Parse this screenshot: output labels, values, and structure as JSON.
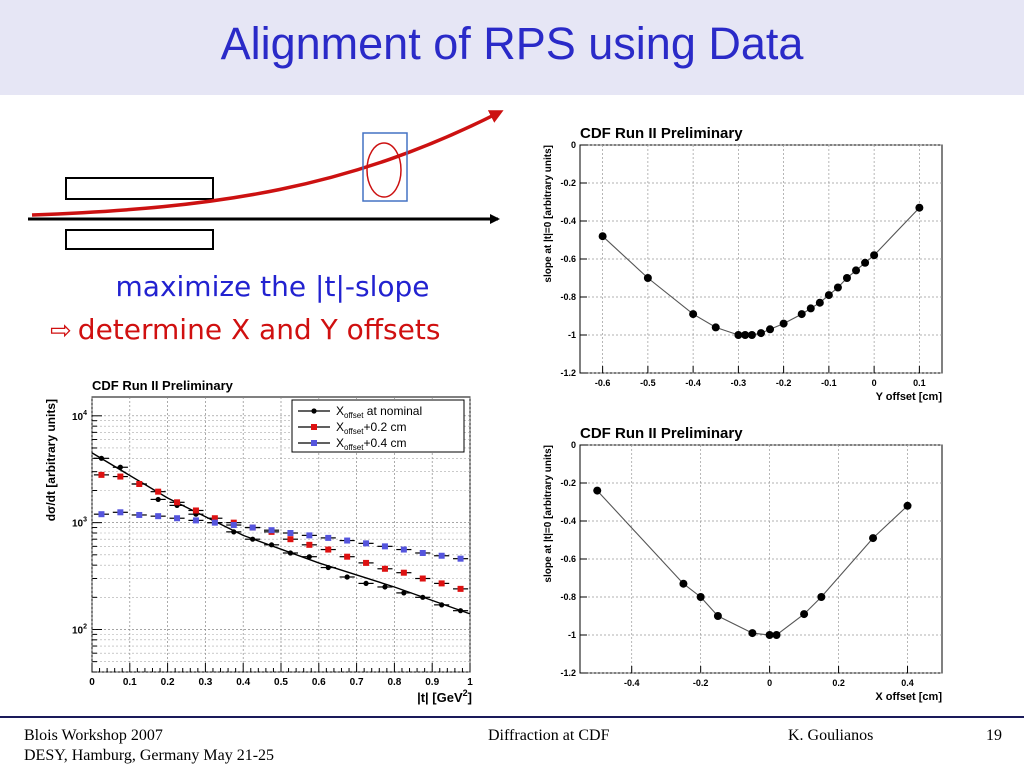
{
  "slide": {
    "title": "Alignment of RPS using Data",
    "caption_line1": "maximize the |t|-slope",
    "caption_line2": "determine X and Y offsets",
    "caption_arrow_icon": "hollow-right-arrow"
  },
  "footer": {
    "left_line1": "Blois Workshop 2007",
    "left_line2": "DESY, Hamburg, Germany May 21-25",
    "center": "Diffraction at CDF",
    "author": "K. Goulianos",
    "page": "19"
  },
  "colors": {
    "title": "#2a2ac8",
    "title_band": "#e6e6f5",
    "caption_blue": "#2222d0",
    "caption_red": "#d01010",
    "beam_arrow": "#cc1111",
    "detector_box": "#4472c4"
  },
  "chart_data": [
    {
      "type": "line",
      "title": "CDF Run II Preliminary",
      "xlabel": "Y offset [cm]",
      "ylabel": "slope at |t|=0 [arbitrary units]",
      "xlim": [
        -0.65,
        0.15
      ],
      "ylim": [
        -1.2,
        0
      ],
      "xticks": [
        -0.6,
        -0.5,
        -0.4,
        -0.3,
        -0.2,
        -0.1,
        0,
        0.1
      ],
      "xticklabels": [
        "-0.6",
        "-0.5",
        "-0.4",
        "-0.3",
        "-0.2",
        "-0.1",
        "0",
        "0.1"
      ],
      "yticks": [
        0,
        -0.2,
        -0.4,
        -0.6,
        -0.8,
        -1,
        -1.2
      ],
      "yticklabels": [
        "0",
        "-0.2",
        "-0.4",
        "-0.6",
        "-0.8",
        "-1",
        "-1.2"
      ],
      "grid": true,
      "x": [
        -0.6,
        -0.5,
        -0.4,
        -0.35,
        -0.3,
        -0.285,
        -0.27,
        -0.25,
        -0.23,
        -0.2,
        -0.16,
        -0.14,
        -0.12,
        -0.1,
        -0.08,
        -0.06,
        -0.04,
        -0.02,
        0,
        0.1
      ],
      "y": [
        -0.48,
        -0.7,
        -0.89,
        -0.96,
        -1.0,
        -1.0,
        -1.0,
        -0.99,
        -0.97,
        -0.94,
        -0.89,
        -0.86,
        -0.83,
        -0.79,
        -0.75,
        -0.7,
        -0.66,
        -0.62,
        -0.58,
        -0.33
      ]
    },
    {
      "type": "line",
      "title": "CDF Run II Preliminary",
      "xlabel": "X offset [cm]",
      "ylabel": "slope at |t|=0 [arbitrary units]",
      "xlim": [
        -0.55,
        0.5
      ],
      "ylim": [
        -1.2,
        0
      ],
      "xticks": [
        -0.4,
        -0.2,
        0,
        0.2,
        0.4
      ],
      "xticklabels": [
        "-0.4",
        "-0.2",
        "0",
        "0.2",
        "0.4"
      ],
      "yticks": [
        0,
        -0.2,
        -0.4,
        -0.6,
        -0.8,
        -1,
        -1.2
      ],
      "yticklabels": [
        "0",
        "-0.2",
        "-0.4",
        "-0.6",
        "-0.8",
        "-1",
        "-1.2"
      ],
      "grid": true,
      "x": [
        -0.5,
        -0.25,
        -0.2,
        -0.15,
        -0.05,
        0,
        0.02,
        0.1,
        0.15,
        0.3,
        0.4
      ],
      "y": [
        -0.24,
        -0.73,
        -0.8,
        -0.9,
        -0.99,
        -1.0,
        -1.0,
        -0.89,
        -0.8,
        -0.49,
        -0.32
      ]
    },
    {
      "type": "scatter",
      "title": "CDF Run II Preliminary",
      "xlabel": "|t| [GeV",
      "xlabel_sup": "2",
      "xlabel_close": "]",
      "ylabel": "dσ/dt [arbitrary units]",
      "xlim": [
        0,
        1
      ],
      "y_scale": "log",
      "ylim": [
        40,
        15000
      ],
      "xticks": [
        0,
        0.1,
        0.2,
        0.3,
        0.4,
        0.5,
        0.6,
        0.7,
        0.8,
        0.9,
        1
      ],
      "xticklabels": [
        "0",
        "0.1",
        "0.2",
        "0.3",
        "0.4",
        "0.5",
        "0.6",
        "0.7",
        "0.8",
        "0.9",
        "1"
      ],
      "yticks": [
        10000,
        1000,
        100
      ],
      "yticklabels": [
        {
          "base": "10",
          "exp": "4"
        },
        {
          "base": "10",
          "exp": "3"
        },
        {
          "base": "10",
          "exp": "2"
        }
      ],
      "grid": true,
      "legend_position": "top-right",
      "series": [
        {
          "name": "X",
          "name_sub": "offset",
          "name_rest": " at nominal",
          "color": "#000000",
          "marker": "circle",
          "x": [
            0.025,
            0.075,
            0.125,
            0.175,
            0.225,
            0.275,
            0.325,
            0.375,
            0.425,
            0.475,
            0.525,
            0.575,
            0.625,
            0.675,
            0.725,
            0.775,
            0.825,
            0.875,
            0.925,
            0.975
          ],
          "y": [
            4000,
            3300,
            2300,
            1650,
            1450,
            1200,
            1000,
            820,
            700,
            620,
            520,
            480,
            380,
            310,
            270,
            250,
            220,
            200,
            170,
            150
          ],
          "fit": [
            [
              0,
              4500
            ],
            [
              0.2,
              1700
            ],
            [
              0.4,
              760
            ],
            [
              0.6,
              420
            ],
            [
              0.8,
              250
            ],
            [
              1,
              140
            ]
          ]
        },
        {
          "name": "X",
          "name_sub": "offset",
          "name_rest": "+0.2 cm",
          "color": "#dd1111",
          "marker": "square",
          "x": [
            0.025,
            0.075,
            0.125,
            0.175,
            0.225,
            0.275,
            0.325,
            0.375,
            0.425,
            0.475,
            0.525,
            0.575,
            0.625,
            0.675,
            0.725,
            0.775,
            0.825,
            0.875,
            0.925,
            0.975
          ],
          "y": [
            2800,
            2700,
            2300,
            1950,
            1550,
            1300,
            1100,
            1000,
            900,
            820,
            700,
            620,
            560,
            480,
            420,
            370,
            340,
            300,
            270,
            240
          ]
        },
        {
          "name": "X",
          "name_sub": "offset",
          "name_rest": "+0.4 cm",
          "color": "#5555dd",
          "marker": "square",
          "x": [
            0.025,
            0.075,
            0.125,
            0.175,
            0.225,
            0.275,
            0.325,
            0.375,
            0.425,
            0.475,
            0.525,
            0.575,
            0.625,
            0.675,
            0.725,
            0.775,
            0.825,
            0.875,
            0.925,
            0.975
          ],
          "y": [
            1200,
            1250,
            1180,
            1150,
            1100,
            1050,
            1000,
            950,
            900,
            850,
            800,
            760,
            720,
            680,
            640,
            600,
            560,
            520,
            490,
            460
          ]
        }
      ]
    }
  ]
}
